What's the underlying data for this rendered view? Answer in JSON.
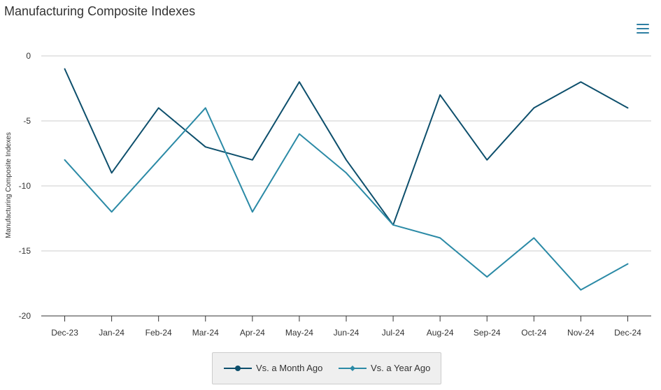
{
  "chart_data": {
    "type": "line",
    "title": "Manufacturing Composite Indexes",
    "ylabel": "Manufacturing Composite Indexes",
    "xlabel": "",
    "categories": [
      "Dec-23",
      "Jan-24",
      "Feb-24",
      "Mar-24",
      "Apr-24",
      "May-24",
      "Jun-24",
      "Jul-24",
      "Aug-24",
      "Sep-24",
      "Oct-24",
      "Nov-24",
      "Dec-24"
    ],
    "ylim": [
      -20,
      0
    ],
    "yticks": [
      0,
      -5,
      -10,
      -15,
      -20
    ],
    "grid": true,
    "legend_position": "bottom",
    "series": [
      {
        "name": "Vs. a Month Ago",
        "color": "#0d4f6c",
        "values": [
          -1,
          -9,
          -4,
          -7,
          -8,
          -2,
          -8,
          -13,
          -3,
          -8,
          -4,
          -2,
          -4
        ]
      },
      {
        "name": "Vs. a Year Ago",
        "color": "#2b8aa6",
        "values": [
          -8,
          -12,
          -8,
          -4,
          -12,
          -6,
          -9,
          -13,
          -14,
          -17,
          -14,
          -18,
          -16
        ]
      }
    ]
  },
  "icons": {
    "menu": "hamburger-menu-icon"
  }
}
